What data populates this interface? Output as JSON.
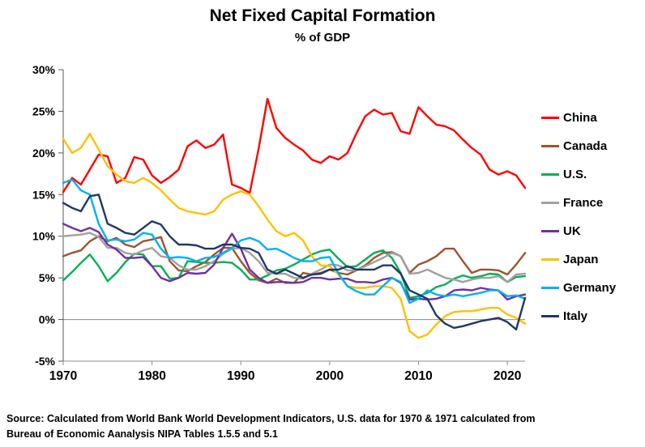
{
  "source": {
    "line1": "Source:  Calculated from World Bank World Development Indicators, U.S. data for 1970 & 1971 calculated from",
    "line2": "Bureau of Economic Aanalysis NIPA Tables 1.5.5 and 5.1"
  },
  "chart_data": {
    "type": "line",
    "title": "Net Fixed Capital Formation",
    "subtitle": "% of GDP",
    "xlabel": "",
    "ylabel": "",
    "xlim": [
      1970,
      2022
    ],
    "ylim": [
      -5,
      30
    ],
    "grid": false,
    "legend_position": "right",
    "x_ticks": [
      1970,
      1980,
      1990,
      2000,
      2010,
      2020
    ],
    "y_ticks": [
      30,
      25,
      20,
      15,
      10,
      5,
      0,
      -5
    ],
    "y_tick_suffix": "%",
    "x": [
      1970,
      1971,
      1972,
      1973,
      1974,
      1975,
      1976,
      1977,
      1978,
      1979,
      1980,
      1981,
      1982,
      1983,
      1984,
      1985,
      1986,
      1987,
      1988,
      1989,
      1990,
      1991,
      1992,
      1993,
      1994,
      1995,
      1996,
      1997,
      1998,
      1999,
      2000,
      2001,
      2002,
      2003,
      2004,
      2005,
      2006,
      2007,
      2008,
      2009,
      2010,
      2011,
      2012,
      2013,
      2014,
      2015,
      2016,
      2017,
      2018,
      2019,
      2020,
      2021,
      2022
    ],
    "series": [
      {
        "name": "China",
        "color": "#FF0000",
        "values": [
          15.3,
          17.0,
          16.2,
          18.0,
          19.8,
          19.6,
          16.4,
          17.0,
          19.5,
          19.2,
          17.3,
          16.4,
          17.1,
          18.0,
          20.8,
          21.5,
          20.6,
          21.0,
          22.2,
          16.2,
          15.8,
          15.2,
          20.5,
          26.5,
          23.0,
          21.8,
          21.0,
          20.3,
          19.2,
          18.8,
          19.6,
          19.2,
          20.0,
          22.3,
          24.4,
          25.2,
          24.6,
          24.8,
          22.6,
          22.3,
          25.5,
          24.4,
          23.4,
          23.2,
          22.7,
          21.6,
          20.6,
          19.8,
          18.0,
          17.4,
          17.8,
          17.3,
          15.8
        ]
      },
      {
        "name": "Canada",
        "color": "#A0522D",
        "values": [
          7.6,
          8.0,
          8.3,
          9.4,
          10.0,
          9.4,
          9.8,
          9.0,
          8.7,
          9.4,
          9.6,
          9.9,
          7.0,
          5.9,
          5.8,
          6.4,
          6.9,
          7.8,
          8.6,
          8.6,
          7.0,
          5.6,
          4.7,
          4.4,
          4.9,
          4.4,
          4.4,
          5.6,
          5.4,
          5.6,
          6.0,
          5.6,
          5.4,
          5.9,
          6.5,
          7.4,
          8.0,
          8.1,
          7.6,
          5.6,
          6.6,
          7.0,
          7.6,
          8.5,
          8.5,
          7.0,
          5.6,
          6.0,
          6.0,
          5.9,
          5.4,
          6.6,
          8.0
        ]
      },
      {
        "name": "U.S.",
        "color": "#00B050",
        "values": [
          4.7,
          5.7,
          6.8,
          7.8,
          6.4,
          4.6,
          5.6,
          6.9,
          7.9,
          7.8,
          6.4,
          6.4,
          4.9,
          5.0,
          7.0,
          6.9,
          6.8,
          6.8,
          6.9,
          6.8,
          6.0,
          4.8,
          4.8,
          5.3,
          5.9,
          6.1,
          6.6,
          7.2,
          7.8,
          8.2,
          8.4,
          7.3,
          6.3,
          6.4,
          7.2,
          8.0,
          8.3,
          7.4,
          5.6,
          2.6,
          2.8,
          3.2,
          3.9,
          4.2,
          4.9,
          5.3,
          5.0,
          5.2,
          5.5,
          5.4,
          4.5,
          5.1,
          5.2
        ]
      },
      {
        "name": "France",
        "color": "#A0A0A0",
        "values": [
          10.0,
          10.1,
          10.2,
          10.4,
          9.9,
          8.6,
          8.6,
          8.0,
          7.8,
          8.3,
          8.6,
          7.6,
          7.4,
          6.5,
          6.0,
          6.0,
          6.4,
          7.0,
          7.9,
          8.5,
          8.6,
          8.0,
          7.0,
          5.6,
          5.5,
          5.5,
          5.0,
          4.9,
          5.5,
          6.0,
          6.6,
          6.5,
          5.9,
          5.9,
          6.4,
          6.9,
          7.4,
          8.0,
          7.6,
          5.5,
          5.6,
          6.0,
          5.5,
          5.0,
          4.8,
          4.5,
          4.8,
          5.0,
          5.0,
          5.2,
          4.5,
          5.4,
          5.5
        ]
      },
      {
        "name": "UK",
        "color": "#7030A0",
        "values": [
          11.5,
          11.0,
          10.6,
          11.0,
          10.5,
          9.0,
          8.4,
          7.4,
          7.4,
          7.5,
          6.4,
          5.0,
          4.6,
          5.0,
          5.6,
          5.5,
          5.6,
          6.6,
          8.6,
          10.3,
          8.5,
          6.0,
          5.0,
          4.4,
          4.5,
          4.5,
          4.4,
          4.5,
          5.0,
          5.0,
          4.8,
          4.9,
          4.9,
          4.5,
          4.5,
          4.4,
          4.8,
          5.0,
          4.4,
          2.4,
          2.5,
          2.4,
          2.5,
          2.8,
          3.5,
          3.6,
          3.5,
          3.8,
          3.6,
          3.5,
          2.4,
          2.8,
          3.0
        ]
      },
      {
        "name": "Japan",
        "color": "#FFC000",
        "values": [
          21.7,
          20.0,
          20.6,
          22.3,
          20.4,
          18.4,
          17.4,
          16.6,
          16.4,
          17.0,
          16.4,
          15.5,
          14.4,
          13.4,
          13.0,
          12.8,
          12.6,
          13.0,
          14.4,
          15.0,
          15.4,
          15.0,
          13.6,
          12.0,
          10.6,
          10.0,
          10.4,
          9.5,
          7.6,
          6.5,
          6.4,
          5.4,
          4.0,
          3.8,
          3.8,
          4.0,
          4.0,
          3.8,
          2.5,
          -1.4,
          -2.2,
          -1.8,
          -0.6,
          0.4,
          0.9,
          1.0,
          1.0,
          1.2,
          1.4,
          1.4,
          0.6,
          0.2,
          -0.5
        ]
      },
      {
        "name": "Germany",
        "color": "#00B0F0",
        "values": [
          16.4,
          16.8,
          15.5,
          15.0,
          11.5,
          9.5,
          9.6,
          9.4,
          9.6,
          10.4,
          10.2,
          8.5,
          7.4,
          7.5,
          7.4,
          7.0,
          7.4,
          7.5,
          8.0,
          8.6,
          9.5,
          9.8,
          9.4,
          8.4,
          8.5,
          8.0,
          7.4,
          7.0,
          7.0,
          7.4,
          7.5,
          5.5,
          4.0,
          3.4,
          3.0,
          3.0,
          4.0,
          5.0,
          4.5,
          2.0,
          2.5,
          3.5,
          3.0,
          2.8,
          3.0,
          2.8,
          3.0,
          3.2,
          3.5,
          3.5,
          2.8,
          2.9,
          2.5
        ]
      },
      {
        "name": "Italy",
        "color": "#1F3864",
        "values": [
          14.0,
          13.4,
          13.0,
          14.8,
          15.0,
          11.5,
          11.0,
          10.4,
          10.2,
          11.0,
          11.8,
          11.4,
          10.0,
          9.0,
          9.0,
          8.9,
          8.5,
          8.5,
          9.0,
          9.0,
          8.6,
          8.5,
          8.0,
          6.0,
          5.5,
          6.0,
          5.5,
          5.0,
          5.4,
          5.5,
          6.0,
          6.0,
          6.4,
          6.0,
          6.0,
          6.0,
          6.5,
          6.5,
          5.5,
          3.5,
          3.0,
          2.5,
          0.5,
          -0.5,
          -1.0,
          -0.8,
          -0.5,
          -0.2,
          0.0,
          0.2,
          -0.3,
          -1.2,
          2.6
        ]
      }
    ]
  }
}
